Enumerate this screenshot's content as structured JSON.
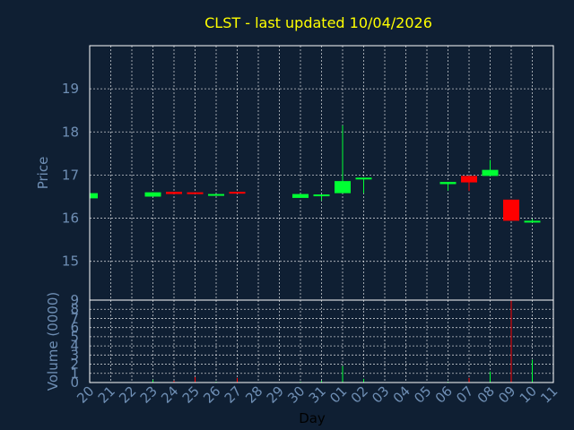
{
  "chart_data": {
    "type": "candlestick",
    "title": "CLST - last updated 10/04/2026",
    "xlabel": "Day",
    "price_ylabel": "Price",
    "volume_ylabel": "Volume (0000)",
    "x_ticks": [
      "20",
      "21",
      "22",
      "23",
      "24",
      "25",
      "26",
      "27",
      "28",
      "29",
      "30",
      "31",
      "01",
      "02",
      "03",
      "04",
      "05",
      "06",
      "07",
      "08",
      "09",
      "10",
      "11"
    ],
    "price_yticks": [
      15,
      16,
      17,
      18,
      19
    ],
    "price_ylim": [
      14.1,
      20.0
    ],
    "volume_yticks": [
      0,
      1,
      2,
      3,
      4,
      5,
      6,
      7,
      8,
      9
    ],
    "volume_ylim": [
      0,
      9
    ],
    "colors": {
      "up": "#00ff33",
      "down": "#ff0000",
      "title": "#ffff00",
      "axis_text": "#6f8fb5",
      "background": "#0f1f33"
    },
    "candles": [
      {
        "x": "20",
        "open": 16.46,
        "close": 16.58,
        "high": 16.58,
        "low": 16.46,
        "volume": 0.1
      },
      {
        "x": "23",
        "open": 16.5,
        "close": 16.6,
        "high": 16.6,
        "low": 16.5,
        "volume": 0.3
      },
      {
        "x": "24",
        "open": 16.61,
        "close": 16.56,
        "high": 16.61,
        "low": 16.56,
        "volume": 0.2
      },
      {
        "x": "25",
        "open": 16.6,
        "close": 16.58,
        "high": 16.6,
        "low": 16.58,
        "volume": 0.6
      },
      {
        "x": "26",
        "open": 16.52,
        "close": 16.56,
        "high": 16.56,
        "low": 16.52,
        "volume": 0.1
      },
      {
        "x": "27",
        "open": 16.61,
        "close": 16.58,
        "high": 16.61,
        "low": 16.58,
        "volume": 0.5
      },
      {
        "x": "30",
        "open": 16.47,
        "close": 16.56,
        "high": 16.56,
        "low": 16.47,
        "volume": 0.1
      },
      {
        "x": "31",
        "open": 16.52,
        "close": 16.55,
        "high": 16.55,
        "low": 16.41,
        "volume": 0.2
      },
      {
        "x": "01",
        "open": 16.58,
        "close": 16.86,
        "high": 18.15,
        "low": 16.58,
        "volume": 1.8
      },
      {
        "x": "02",
        "open": 16.9,
        "close": 16.94,
        "high": 16.94,
        "low": 16.58,
        "volume": 0.4
      },
      {
        "x": "06",
        "open": 16.79,
        "close": 16.84,
        "high": 16.84,
        "low": 16.64,
        "volume": 0.1
      },
      {
        "x": "07",
        "open": 16.98,
        "close": 16.83,
        "high": 16.98,
        "low": 16.63,
        "volume": 0.5
      },
      {
        "x": "08",
        "open": 16.98,
        "close": 17.12,
        "high": 17.35,
        "low": 16.98,
        "volume": 1.2
      },
      {
        "x": "09",
        "open": 16.43,
        "close": 15.94,
        "high": 16.43,
        "low": 15.94,
        "volume": 9.0
      },
      {
        "x": "10",
        "open": 15.9,
        "close": 15.94,
        "high": 15.98,
        "low": 15.9,
        "volume": 2.5
      }
    ]
  }
}
